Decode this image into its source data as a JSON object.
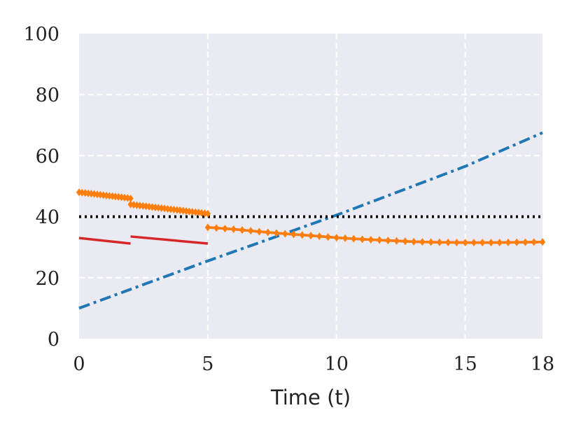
{
  "chart_data": {
    "type": "line",
    "title": "",
    "xlabel": "Time (t)",
    "ylabel": "",
    "xlim": [
      0,
      18
    ],
    "ylim": [
      0,
      100
    ],
    "x_ticks": [
      0,
      5,
      10,
      15,
      18
    ],
    "y_ticks": [
      0,
      20,
      40,
      60,
      80,
      100
    ],
    "grid": true,
    "grid_style": "dashed-white",
    "background": "#eaeaf2",
    "legend": "none",
    "series": [
      {
        "style": "dash-dot",
        "color": "#1f77b4",
        "segments": [
          [
            [
              0,
              10.0
            ],
            [
              5,
              25.5
            ],
            [
              10,
              40.5
            ],
            [
              15,
              56.5
            ],
            [
              18,
              67.5
            ]
          ]
        ]
      },
      {
        "style": "dotted",
        "color": "#000000",
        "segments": [
          [
            [
              0,
              40
            ],
            [
              18,
              40
            ]
          ]
        ]
      },
      {
        "style": "solid",
        "color": "#d62728",
        "segments": [
          [
            [
              0,
              33.0
            ],
            [
              2,
              31.2
            ]
          ],
          [
            [
              2,
              33.5
            ],
            [
              5,
              31.2
            ]
          ],
          [
            [
              5,
              36.5
            ],
            [
              6,
              35.9
            ],
            [
              7,
              35.1
            ],
            [
              8,
              34.4
            ],
            [
              9,
              33.8
            ],
            [
              10,
              33.1
            ],
            [
              11,
              32.6
            ],
            [
              12,
              32.2
            ],
            [
              13,
              31.8
            ],
            [
              14,
              31.6
            ],
            [
              15,
              31.5
            ],
            [
              16,
              31.5
            ],
            [
              17,
              31.6
            ],
            [
              18,
              31.7
            ]
          ]
        ]
      },
      {
        "style": "solid-diamond-markers",
        "color": "#ff7f0e",
        "segments": [
          [
            [
              0,
              48.0
            ],
            [
              2,
              46.0
            ]
          ],
          [
            [
              2,
              44.0
            ],
            [
              5,
              41.0
            ]
          ],
          [
            [
              5,
              36.5
            ],
            [
              6,
              35.9
            ],
            [
              7,
              35.1
            ],
            [
              8,
              34.4
            ],
            [
              9,
              33.8
            ],
            [
              10,
              33.1
            ],
            [
              11,
              32.6
            ],
            [
              12,
              32.2
            ],
            [
              13,
              31.8
            ],
            [
              14,
              31.6
            ],
            [
              15,
              31.5
            ],
            [
              16,
              31.5
            ],
            [
              17,
              31.6
            ],
            [
              18,
              31.7
            ]
          ]
        ]
      }
    ]
  }
}
